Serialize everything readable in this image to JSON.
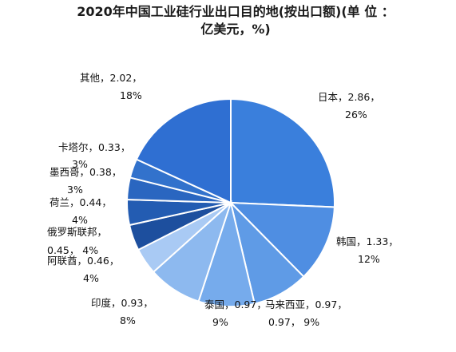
{
  "chart_data": {
    "type": "pie",
    "title_line1": "2020年中国工业硅行业出口目的地(按出口额)(单 位 ：",
    "title_line2": "亿美元，%)",
    "slices": [
      {
        "name": "日本",
        "value": 2.86,
        "value_text": "2.86",
        "pct": "26%",
        "color": "#3a7fdc"
      },
      {
        "name": "韩国",
        "value": 1.33,
        "value_text": "1.33",
        "pct": "12%",
        "color": "#4f8ee2"
      },
      {
        "name": "马来西亚",
        "value": 0.97,
        "value_text": "0.97",
        "pct": "9%",
        "color": "#5f9be6"
      },
      {
        "name": "泰国",
        "value": 0.97,
        "value_text": "0.97",
        "pct": "9%",
        "color": "#76abec"
      },
      {
        "name": "印度",
        "value": 0.93,
        "value_text": "0.93",
        "pct": "8%",
        "color": "#8db9ef"
      },
      {
        "name": "阿联酋",
        "value": 0.46,
        "value_text": "0.46",
        "pct": "4%",
        "color": "#a9caf4"
      },
      {
        "name": "俄罗斯联邦",
        "value": 0.45,
        "value_text": "0.45",
        "pct": "4%",
        "color": "#1d4f9e"
      },
      {
        "name": "荷兰",
        "value": 0.44,
        "value_text": "0.44",
        "pct": "4%",
        "color": "#235cb2"
      },
      {
        "name": "墨西哥",
        "value": 0.38,
        "value_text": "0.38",
        "pct": "3%",
        "color": "#2a66c0"
      },
      {
        "name": "卡塔尔",
        "value": 0.33,
        "value_text": "0.33",
        "pct": "3%",
        "color": "#3272cc"
      },
      {
        "name": "其他",
        "value": 2.02,
        "value_text": "2.02",
        "pct": "18%",
        "color": "#2f6fd2"
      }
    ]
  }
}
